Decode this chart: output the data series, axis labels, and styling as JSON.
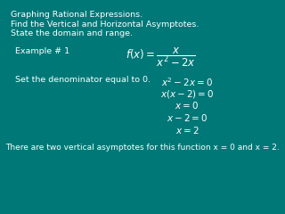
{
  "bg_color": "#007878",
  "text_color": "#ffffff",
  "title_lines": [
    "Graphing Rational Expressions.",
    "Find the Vertical and Horizontal Asymptotes.",
    "State the domain and range."
  ],
  "example_label": "Example # 1",
  "function_formula": "$f(x) = \\dfrac{x}{x^2 - 2x}$",
  "set_denom_text": "Set the denominator equal to 0.",
  "math_steps": [
    "$x^2 - 2x = 0$",
    "$x(x - 2) = 0$",
    "$x = 0$",
    "$x - 2 = 0$",
    "$x = 2$"
  ],
  "conclusion": "There are two vertical asymptotes for this function x = 0 and x = 2.",
  "title_fontsize": 6.8,
  "example_fontsize": 6.8,
  "formula_fontsize": 8.5,
  "step_fontsize": 7.5,
  "conclusion_fontsize": 6.5
}
